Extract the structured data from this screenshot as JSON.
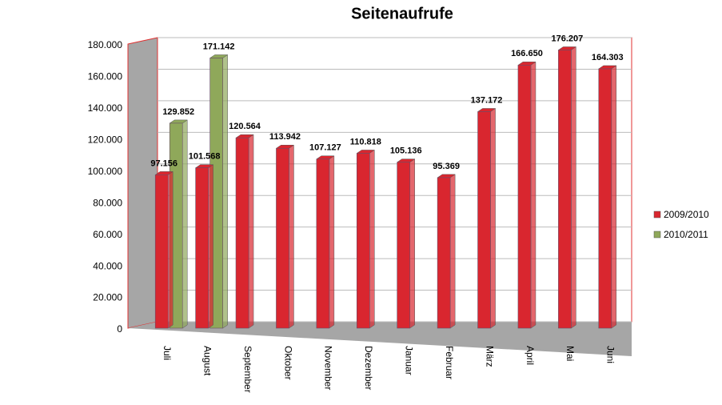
{
  "chart_data": {
    "type": "bar3d",
    "title": "Seitenaufrufe",
    "categories": [
      "Juli",
      "August",
      "September",
      "Oktober",
      "November",
      "Dezember",
      "Januar",
      "Februar",
      "März",
      "April",
      "Mai",
      "Juni"
    ],
    "series": [
      {
        "name": "2009/2010",
        "color": "#d9262f",
        "values": [
          97156,
          101568,
          120564,
          113942,
          107127,
          110818,
          105136,
          95369,
          137172,
          166650,
          176207,
          164303
        ],
        "value_labels": [
          "97.156",
          "101.568",
          "120.564",
          "113.942",
          "107.127",
          "110.818",
          "105.136",
          "95.369",
          "137.172",
          "166.650",
          "176.207",
          "164.303"
        ]
      },
      {
        "name": "2010/2011",
        "color": "#8fa85a",
        "values": [
          129852,
          171142,
          null,
          null,
          null,
          null,
          null,
          null,
          null,
          null,
          null,
          null
        ],
        "value_labels": [
          "129.852",
          "171.142",
          null,
          null,
          null,
          null,
          null,
          null,
          null,
          null,
          null,
          null
        ]
      }
    ],
    "ylim": [
      0,
      180000
    ],
    "yticks": [
      0,
      {
        "value": 20000,
        "label": "20.000"
      },
      {
        "value": 40000,
        "label": "40.000"
      },
      {
        "value": 60000,
        "label": "60.000"
      },
      {
        "value": 80000,
        "label": "80.000"
      },
      {
        "value": 100000,
        "label": "100.000"
      },
      {
        "value": 120000,
        "label": "120.000"
      },
      {
        "value": 140000,
        "label": "140.000"
      },
      {
        "value": 160000,
        "label": "160.000"
      },
      {
        "value": 180000,
        "label": "180.000"
      }
    ],
    "grid": true,
    "legend": "right"
  }
}
